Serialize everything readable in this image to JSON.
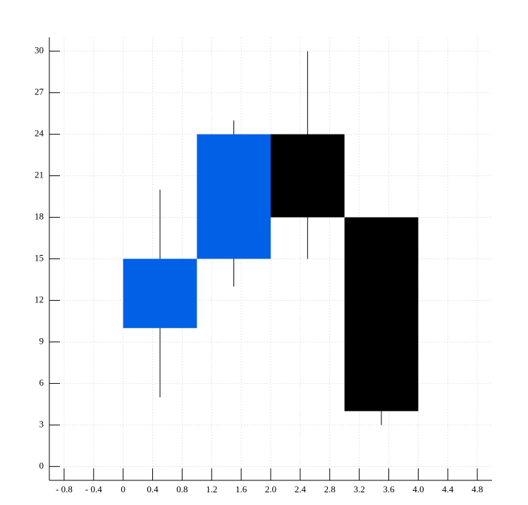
{
  "chart_data": {
    "type": "candlestick",
    "x": [
      0.5,
      1.5,
      2.5,
      3.5
    ],
    "open": [
      10,
      15,
      24,
      18
    ],
    "high": [
      20,
      25,
      30,
      18
    ],
    "low": [
      5,
      13,
      15,
      3
    ],
    "close": [
      15,
      24,
      18,
      4
    ],
    "body_width": 1,
    "increasing_color": "#0060e6",
    "decreasing_color": "#000000",
    "xlim": [
      -1,
      5
    ],
    "ylim": [
      -1,
      31
    ],
    "xticks": [
      {
        "value": -0.8,
        "label": "- 0.8"
      },
      {
        "value": -0.4,
        "label": "- 0.4"
      },
      0,
      0.4,
      0.8,
      1.2,
      1.6,
      {
        "value": 2,
        "label": "2.0"
      },
      2.4,
      2.8,
      3.2,
      3.6,
      {
        "value": 4,
        "label": "4.0"
      },
      4.4,
      4.8
    ],
    "yticks": [
      0,
      3,
      6,
      9,
      12,
      15,
      18,
      21,
      24,
      27,
      30
    ],
    "grid": true
  }
}
